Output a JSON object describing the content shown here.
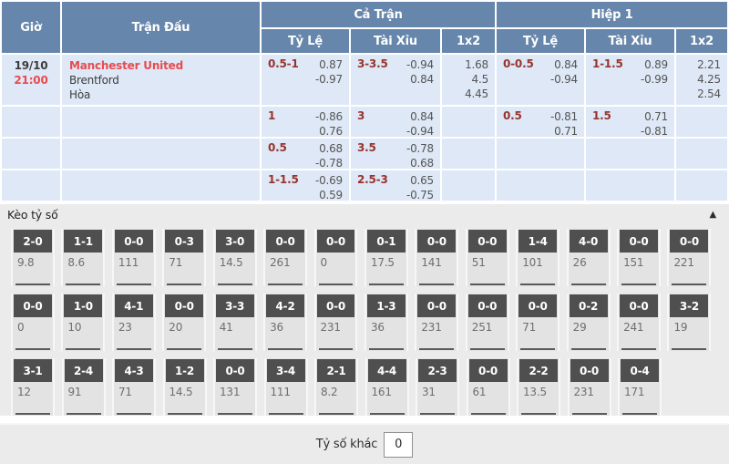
{
  "header": {
    "time": "Giờ",
    "match": "Trận Đấu",
    "full_match": "Cả Trận",
    "first_half": "Hiệp 1",
    "handicap": "Tỷ Lệ",
    "over_under": "Tài Xỉu",
    "one_x_two": "1x2"
  },
  "match_row": {
    "date": "19/10",
    "time": "21:00",
    "home": "Manchester United",
    "away": "Brentford",
    "draw": "Hòa"
  },
  "odds_rows": [
    {
      "ft_handicap": {
        "line": "0.5-1",
        "odds": [
          "0.87",
          "-0.97"
        ]
      },
      "ft_over_under": {
        "line": "3-3.5",
        "odds": [
          "-0.94",
          "0.84"
        ]
      },
      "ft_1x2": [
        "1.68",
        "4.5",
        "4.45"
      ],
      "h1_handicap": {
        "line": "0-0.5",
        "odds": [
          "0.84",
          "-0.94"
        ]
      },
      "h1_over_under": {
        "line": "1-1.5",
        "odds": [
          "0.89",
          "-0.99"
        ]
      },
      "h1_1x2": [
        "2.21",
        "4.25",
        "2.54"
      ]
    },
    {
      "ft_handicap": {
        "line": "1",
        "odds": [
          "-0.86",
          "0.76"
        ]
      },
      "ft_over_under": {
        "line": "3",
        "odds": [
          "0.84",
          "-0.94"
        ]
      },
      "ft_1x2": [],
      "h1_handicap": {
        "line": "0.5",
        "odds": [
          "-0.81",
          "0.71"
        ]
      },
      "h1_over_under": {
        "line": "1.5",
        "odds": [
          "0.71",
          "-0.81"
        ]
      },
      "h1_1x2": []
    },
    {
      "ft_handicap": {
        "line": "0.5",
        "odds": [
          "0.68",
          "-0.78"
        ]
      },
      "ft_over_under": {
        "line": "3.5",
        "odds": [
          "-0.78",
          "0.68"
        ]
      },
      "ft_1x2": [],
      "h1_handicap": null,
      "h1_over_under": null,
      "h1_1x2": []
    },
    {
      "ft_handicap": {
        "line": "1-1.5",
        "odds": [
          "-0.69",
          "0.59"
        ]
      },
      "ft_over_under": {
        "line": "2.5-3",
        "odds": [
          "0.65",
          "-0.75"
        ]
      },
      "ft_1x2": [],
      "h1_handicap": null,
      "h1_over_under": null,
      "h1_1x2": []
    }
  ],
  "score_section": {
    "title": "Kèo tỷ số",
    "collapse_icon": "▲",
    "rows": [
      [
        {
          "score": "2-0",
          "odds": "9.8"
        },
        {
          "score": "1-1",
          "odds": "8.6"
        },
        {
          "score": "0-0",
          "odds": "111"
        },
        {
          "score": "0-3",
          "odds": "71"
        },
        {
          "score": "3-0",
          "odds": "14.5"
        },
        {
          "score": "0-0",
          "odds": "261"
        },
        {
          "score": "0-0",
          "odds": "0"
        },
        {
          "score": "0-1",
          "odds": "17.5"
        },
        {
          "score": "0-0",
          "odds": "141"
        },
        {
          "score": "0-0",
          "odds": "51"
        },
        {
          "score": "1-4",
          "odds": "101"
        },
        {
          "score": "4-0",
          "odds": "26"
        },
        {
          "score": "0-0",
          "odds": "151"
        },
        {
          "score": "0-0",
          "odds": "221"
        }
      ],
      [
        {
          "score": "0-0",
          "odds": "0"
        },
        {
          "score": "1-0",
          "odds": "10"
        },
        {
          "score": "4-1",
          "odds": "23"
        },
        {
          "score": "0-0",
          "odds": "20"
        },
        {
          "score": "3-3",
          "odds": "41"
        },
        {
          "score": "4-2",
          "odds": "36"
        },
        {
          "score": "0-0",
          "odds": "231"
        },
        {
          "score": "1-3",
          "odds": "36"
        },
        {
          "score": "0-0",
          "odds": "231"
        },
        {
          "score": "0-0",
          "odds": "251"
        },
        {
          "score": "0-0",
          "odds": "71"
        },
        {
          "score": "0-2",
          "odds": "29"
        },
        {
          "score": "0-0",
          "odds": "241"
        },
        {
          "score": "3-2",
          "odds": "19"
        }
      ],
      [
        {
          "score": "3-1",
          "odds": "12"
        },
        {
          "score": "2-4",
          "odds": "91"
        },
        {
          "score": "4-3",
          "odds": "71"
        },
        {
          "score": "1-2",
          "odds": "14.5"
        },
        {
          "score": "0-0",
          "odds": "131"
        },
        {
          "score": "3-4",
          "odds": "111"
        },
        {
          "score": "2-1",
          "odds": "8.2"
        },
        {
          "score": "4-4",
          "odds": "161"
        },
        {
          "score": "2-3",
          "odds": "31"
        },
        {
          "score": "0-0",
          "odds": "61"
        },
        {
          "score": "2-2",
          "odds": "13.5"
        },
        {
          "score": "0-0",
          "odds": "231"
        },
        {
          "score": "0-4",
          "odds": "171"
        }
      ]
    ],
    "other_score_label": "Tỷ số khác",
    "other_score_value": "0"
  },
  "colors": {
    "header_bg": "#6686ab",
    "row_bg": "#dee8f6",
    "accent_red": "#e84b4f",
    "handicap_red": "#96342e",
    "chip_bg": "#4f4f4f",
    "section_bg": "#ebebeb"
  }
}
